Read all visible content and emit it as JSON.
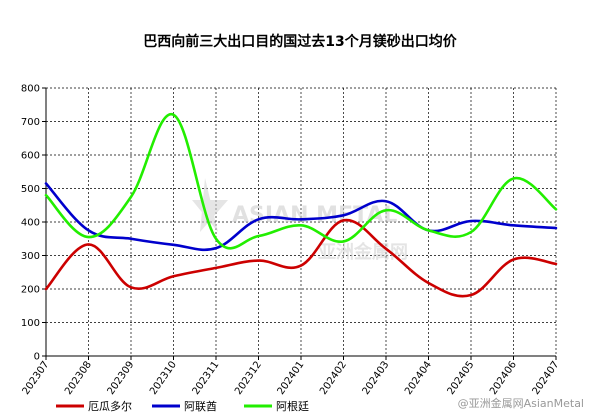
{
  "chart_data": {
    "type": "line",
    "title": "巴西向前三大出口目的国过去13个月镁砂出口均价",
    "xlabel": "",
    "ylabel": "",
    "categories": [
      "202307",
      "202308",
      "202309",
      "202310",
      "202311",
      "202312",
      "202401",
      "202402",
      "202403",
      "202404",
      "202405",
      "202406",
      "202407"
    ],
    "ylim": [
      0,
      800
    ],
    "yticks": [
      0,
      100,
      200,
      300,
      400,
      500,
      600,
      700,
      800
    ],
    "grid": true,
    "legend_position": "bottom",
    "series": [
      {
        "name": "厄瓜多尔",
        "color": "#cc0000",
        "values": [
          200,
          333,
          205,
          238,
          263,
          285,
          270,
          405,
          320,
          218,
          182,
          288,
          275
        ]
      },
      {
        "name": "阿联酋",
        "color": "#0000cc",
        "values": [
          515,
          375,
          350,
          332,
          322,
          408,
          408,
          420,
          462,
          375,
          403,
          390,
          382
        ]
      },
      {
        "name": "阿根廷",
        "color": "#22ee00",
        "values": [
          480,
          355,
          475,
          720,
          350,
          358,
          390,
          342,
          435,
          375,
          370,
          530,
          438
        ]
      }
    ]
  },
  "watermark": {
    "line1": "ASIAN METAL",
    "line2": "亚洲金属网",
    "credit": "@亚洲金属网AsianMetal"
  }
}
